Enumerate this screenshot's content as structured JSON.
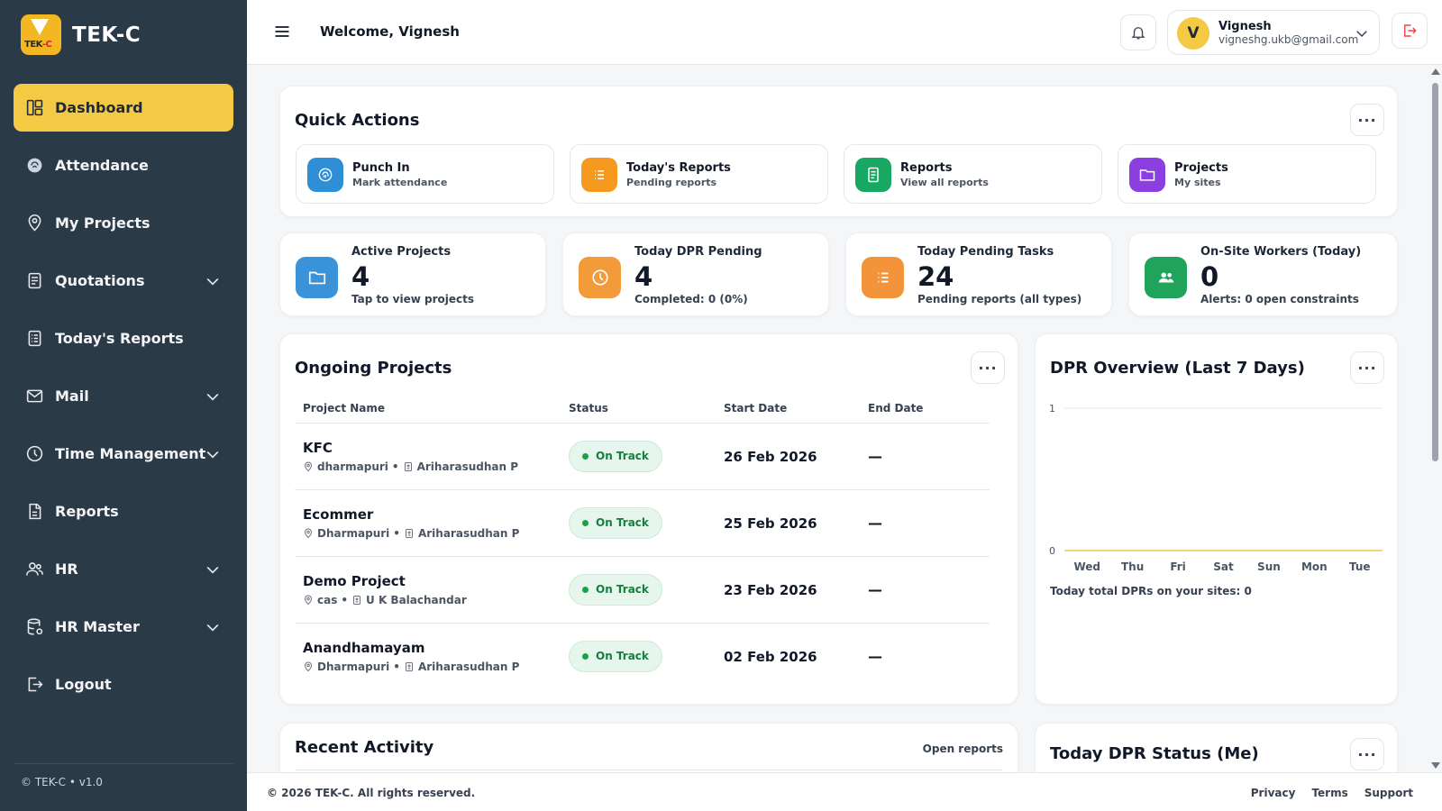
{
  "brand": {
    "name": "TEK-C",
    "logo_text_a": "TEK",
    "logo_text_b": "-C"
  },
  "sidebar": {
    "items": [
      {
        "label": "Dashboard",
        "icon": "dashboard-icon",
        "active": true,
        "expandable": false
      },
      {
        "label": "Attendance",
        "icon": "fingerprint-icon",
        "expandable": false
      },
      {
        "label": "My Projects",
        "icon": "location-pin-icon",
        "expandable": false
      },
      {
        "label": "Quotations",
        "icon": "document-icon",
        "expandable": true
      },
      {
        "label": "Today's Reports",
        "icon": "report-list-icon",
        "expandable": false
      },
      {
        "label": "Mail",
        "icon": "mail-icon",
        "expandable": true
      },
      {
        "label": "Time Management",
        "icon": "clock-icon",
        "expandable": true
      },
      {
        "label": "Reports",
        "icon": "file-icon",
        "expandable": false
      },
      {
        "label": "HR",
        "icon": "users-icon",
        "expandable": true
      },
      {
        "label": "HR Master",
        "icon": "database-icon",
        "expandable": true
      },
      {
        "label": "Logout",
        "icon": "logout-icon",
        "expandable": false
      }
    ],
    "footer": "© TEK-C • v1.0"
  },
  "header": {
    "welcome": "Welcome, Vignesh",
    "user": {
      "initial": "V",
      "name": "Vignesh",
      "email": "vigneshg.ukb@gmail.com"
    }
  },
  "quick_actions": {
    "title": "Quick Actions",
    "items": [
      {
        "title": "Punch In",
        "subtitle": "Mark attendance",
        "color": "#2f8fd6"
      },
      {
        "title": "Today's Reports",
        "subtitle": "Pending reports",
        "color": "#f59a1f"
      },
      {
        "title": "Reports",
        "subtitle": "View all reports",
        "color": "#18a864"
      },
      {
        "title": "Projects",
        "subtitle": "My sites",
        "color": "#8b3fe0"
      }
    ]
  },
  "stats": [
    {
      "label": "Active Projects",
      "value": "4",
      "sub": "Tap to view projects",
      "color": "#3a93d8"
    },
    {
      "label": "Today DPR Pending",
      "value": "4",
      "sub": "Completed: 0 (0%)",
      "color": "#f39a3a"
    },
    {
      "label": "Today Pending Tasks",
      "value": "24",
      "sub": "Pending reports (all types)",
      "color": "#f3943a"
    },
    {
      "label": "On-Site Workers (Today)",
      "value": "0",
      "sub": "Alerts: 0 open constraints",
      "color": "#20a35a"
    }
  ],
  "ongoing": {
    "title": "Ongoing Projects",
    "columns": [
      "Project Name",
      "Status",
      "Start Date",
      "End Date"
    ],
    "rows": [
      {
        "name": "KFC",
        "location": "dharmapuri",
        "manager": "Ariharasudhan P",
        "status": "On Track",
        "start": "26 Feb 2026",
        "end": "—"
      },
      {
        "name": "Ecommer",
        "location": "Dharmapuri",
        "manager": "Ariharasudhan P",
        "status": "On Track",
        "start": "25 Feb 2026",
        "end": "—"
      },
      {
        "name": "Demo Project",
        "location": "cas",
        "manager": "U K Balachandar",
        "status": "On Track",
        "start": "23 Feb 2026",
        "end": "—"
      },
      {
        "name": "Anandhamayam",
        "location": "Dharmapuri",
        "manager": "Ariharasudhan P",
        "status": "On Track",
        "start": "02 Feb 2026",
        "end": "—"
      }
    ]
  },
  "dpr_overview": {
    "title": "DPR Overview (Last 7 Days)",
    "summary": "Today total DPRs on your sites: 0",
    "chart_data": {
      "type": "bar",
      "categories": [
        "Wed",
        "Thu",
        "Fri",
        "Sat",
        "Sun",
        "Mon",
        "Tue"
      ],
      "values": [
        0,
        0,
        0,
        0,
        0,
        0,
        0
      ],
      "ylim": [
        0,
        1
      ],
      "yticks": [
        "0",
        "1"
      ],
      "grid": true
    }
  },
  "recent_activity": {
    "title": "Recent Activity",
    "link": "Open reports"
  },
  "dpr_status": {
    "title": "Today DPR Status (Me)"
  },
  "footer": {
    "copyright": "© 2026 TEK-C. All rights reserved.",
    "links": [
      "Privacy",
      "Terms",
      "Support"
    ]
  },
  "colors": {
    "sidebar_bg": "#2b3a47",
    "accent": "#f4c943",
    "on_track": "#16a34a"
  }
}
